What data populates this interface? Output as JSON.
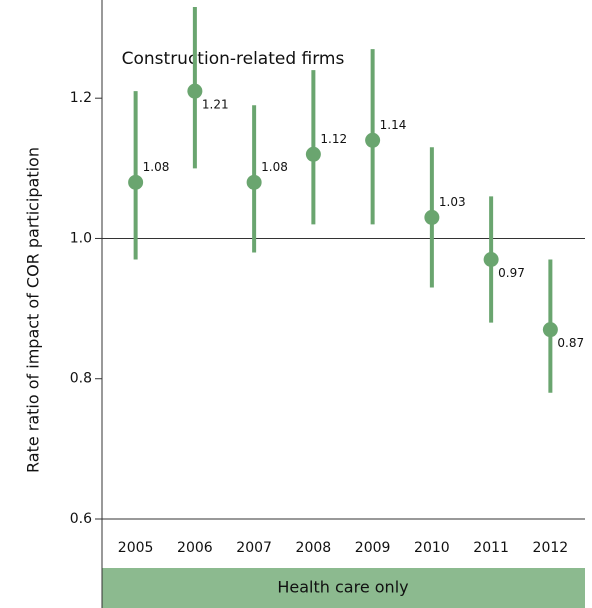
{
  "chart_data": {
    "type": "errorbar",
    "title": "Construction-related firms",
    "y_label": "Rate ratio of impact of COR participation",
    "panel_label": "Health care only",
    "categories": [
      "2005",
      "2006",
      "2007",
      "2008",
      "2009",
      "2010",
      "2011",
      "2012"
    ],
    "values": [
      1.08,
      1.21,
      1.08,
      1.12,
      1.14,
      1.03,
      0.97,
      0.87
    ],
    "lower": [
      0.97,
      1.1,
      0.98,
      1.02,
      1.02,
      0.93,
      0.88,
      0.78
    ],
    "upper": [
      1.21,
      1.33,
      1.19,
      1.24,
      1.27,
      1.13,
      1.06,
      0.97
    ],
    "color": "#6aa56f",
    "ylim": [
      0.6,
      1.34
    ],
    "yticks": [
      0.6,
      0.8,
      {
        "value": 1.0,
        "label": "1.0"
      },
      1.2
    ],
    "reference_line": 1
  }
}
